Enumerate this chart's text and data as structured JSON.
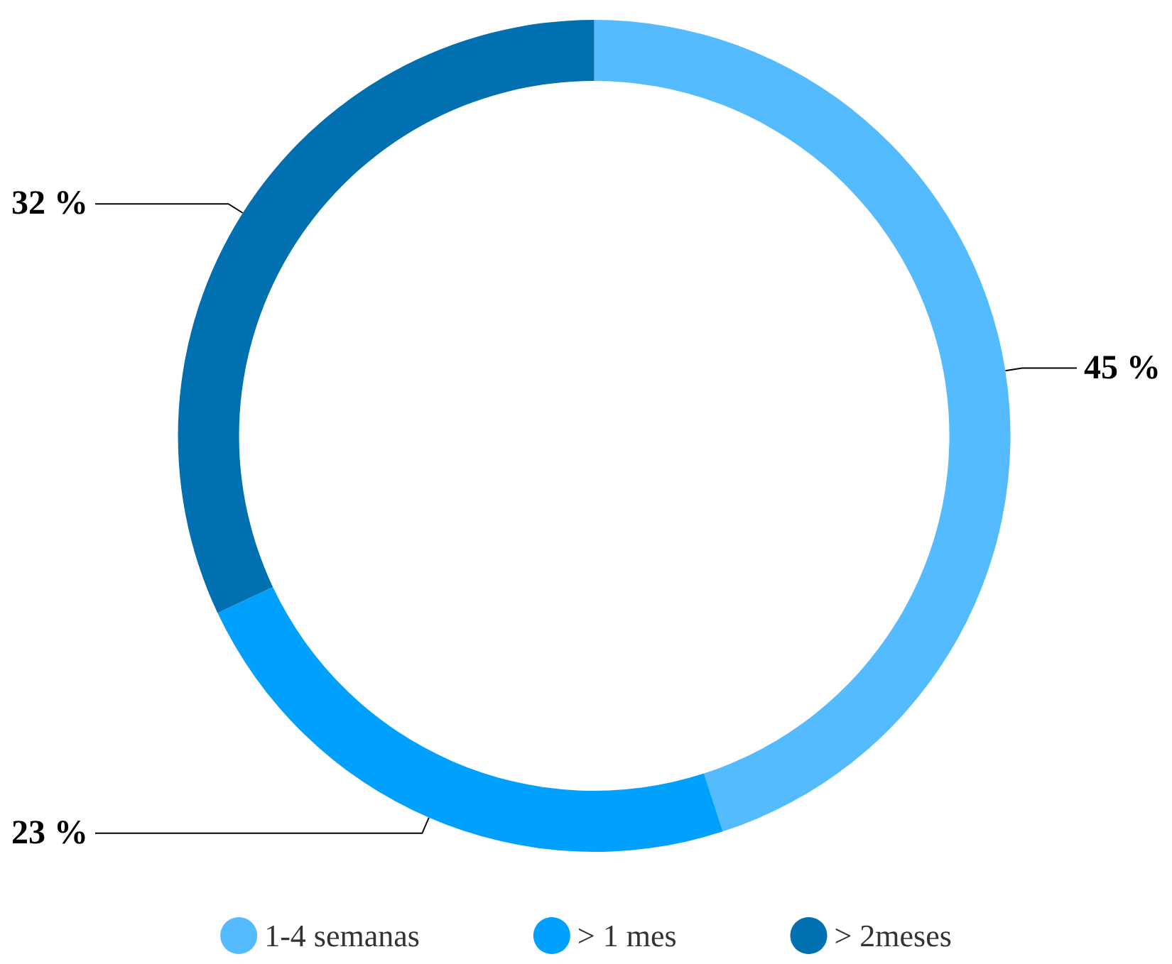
{
  "chart_data": {
    "type": "donut",
    "categories": [
      "1-4 semanas",
      "> 1 mes",
      "> 2meses"
    ],
    "values": [
      45,
      23,
      32
    ],
    "colors": [
      "#55bbff",
      "#00a0ff",
      "#0070b0"
    ],
    "value_labels": [
      "45 %",
      "23 %",
      "32 %"
    ],
    "legend": "bottom"
  }
}
